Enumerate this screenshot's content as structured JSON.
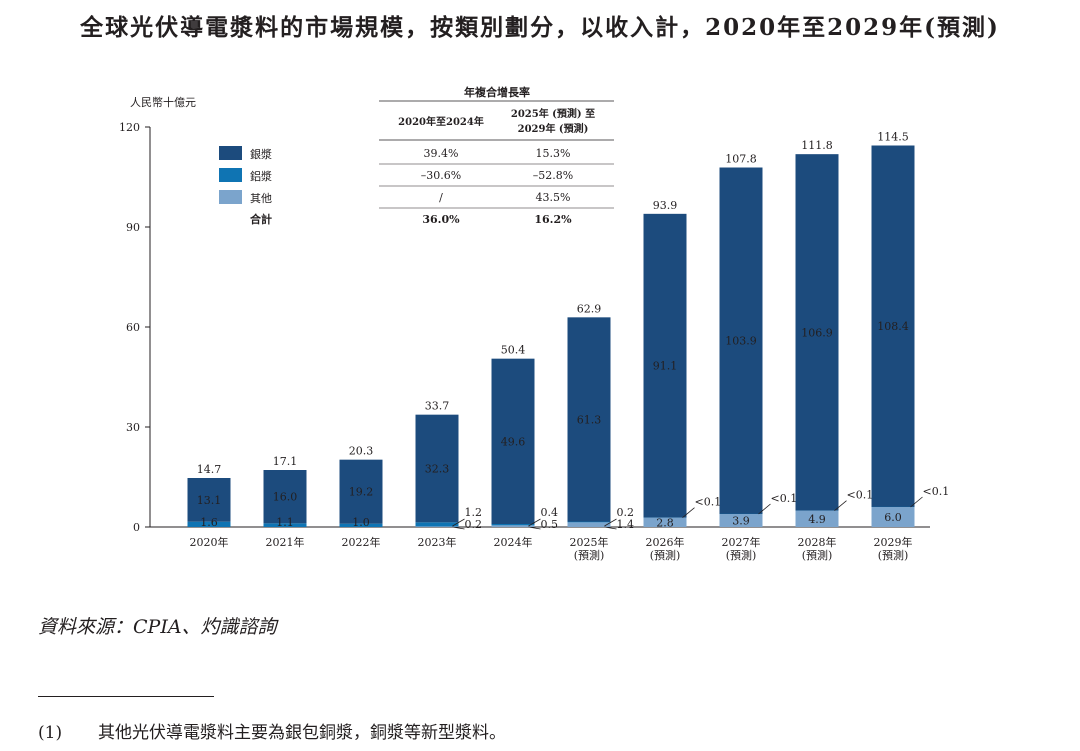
{
  "title": "全球光伏導電漿料的市場規模，按類別劃分，以收入計，2020年至2029年(預測)",
  "source": "資料來源：CPIA、灼識諮詢",
  "footnote": {
    "marker": "(1)",
    "text": "其他光伏導電漿料主要為銀包銅漿，銅漿等新型漿料。"
  },
  "colors": {
    "silver": "#1c4b7d",
    "aluminium": "#0f74b3",
    "other": "#7ba4cc"
  },
  "legend": [
    "銀漿",
    "鋁漿",
    "其他"
  ],
  "cagr_table": {
    "title": "年複合增長率",
    "headers": [
      "2020年至2024年",
      "2025年 (預測) 至\n2029年 (預測)"
    ],
    "rows": [
      {
        "label": "銀漿",
        "v1": "39.4%",
        "v2": "15.3%"
      },
      {
        "label": "鋁漿",
        "v1": "–30.6%",
        "v2": "–52.8%"
      },
      {
        "label": "其他",
        "v1": "/",
        "v2": "43.5%"
      },
      {
        "label": "合計",
        "v1": "36.0%",
        "v2": "16.2%",
        "bold": true
      }
    ]
  },
  "chart_data": {
    "type": "bar",
    "stacked": true,
    "ylabel": "人民幣十億元",
    "ylim": [
      0,
      120
    ],
    "yticks": [
      0,
      30,
      60,
      90,
      120
    ],
    "categories": [
      "2020年",
      "2021年",
      "2022年",
      "2023年",
      "2024年",
      "2025年\n(預測)",
      "2026年\n(預測)",
      "2027年\n(預測)",
      "2028年\n(預測)",
      "2029年\n(預測)"
    ],
    "totals": [
      "14.7",
      "17.1",
      "20.3",
      "33.7",
      "50.4",
      "62.9",
      "93.9",
      "107.8",
      "111.8",
      "114.5"
    ],
    "series": [
      {
        "name": "其他",
        "color": "#7ba4cc",
        "values": [
          0,
          0,
          0,
          0.2,
          0.5,
          1.4,
          2.8,
          3.9,
          4.9,
          6.0
        ],
        "labels": [
          "",
          "",
          "",
          "0.2",
          "0.5",
          "1.4",
          "2.8",
          "3.9",
          "4.9",
          "6.0"
        ]
      },
      {
        "name": "鋁漿",
        "color": "#0f74b3",
        "values": [
          1.6,
          1.1,
          1.0,
          1.2,
          0.4,
          0.2,
          0.05,
          0.05,
          0.05,
          0.05
        ],
        "labels": [
          "1.6",
          "1.1",
          "1.0",
          "1.2",
          "0.4",
          "0.2",
          "<0.1",
          "<0.1",
          "<0.1",
          "<0.1"
        ]
      },
      {
        "name": "銀漿",
        "color": "#1c4b7d",
        "values": [
          13.1,
          16.0,
          19.2,
          32.3,
          49.6,
          61.3,
          91.1,
          103.9,
          106.9,
          108.4
        ],
        "labels": [
          "13.1",
          "16.0",
          "19.2",
          "32.3",
          "49.6",
          "61.3",
          "91.1",
          "103.9",
          "106.9",
          "108.4"
        ]
      }
    ]
  }
}
